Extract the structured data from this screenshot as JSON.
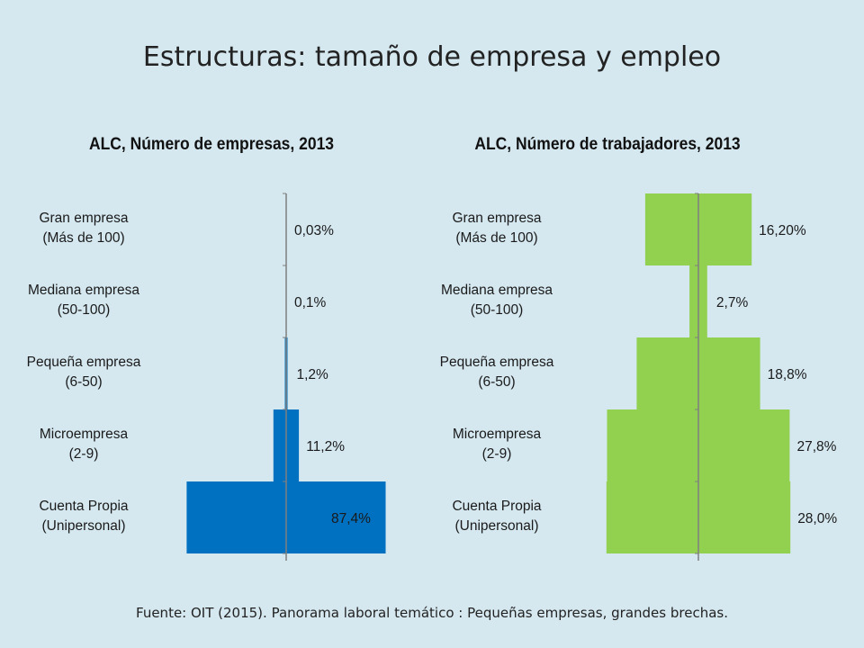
{
  "title": "Estructuras: tamaño de empresa y empleo",
  "source": "Fuente: OIT (2015). Panorama laboral temático : Pequeñas empresas, grandes brechas.",
  "colors": {
    "left": "#0070c0",
    "right": "#92d050",
    "background": "#d5e8f0"
  },
  "chart_data": [
    {
      "type": "bar",
      "title": "ALC, Número de empresas, 2013",
      "categories": [
        [
          "Gran empresa",
          "(Más de 100)"
        ],
        [
          "Mediana empresa",
          "(50-100)"
        ],
        [
          "Pequeña empresa",
          "(6-50)"
        ],
        [
          "Microempresa",
          "(2-9)"
        ],
        [
          "Cuenta Propia",
          "(Unipersonal)"
        ]
      ],
      "values": [
        0.03,
        0.1,
        1.2,
        11.2,
        87.4
      ],
      "labels": [
        "0,03%",
        "0,1%",
        "1,2%",
        "11,2%",
        "87,4%"
      ]
    },
    {
      "type": "bar",
      "title": "ALC, Número de trabajadores, 2013",
      "categories": [
        [
          "Gran empresa",
          "(Más de 100)"
        ],
        [
          "Mediana empresa",
          "(50-100)"
        ],
        [
          "Pequeña empresa",
          "(6-50)"
        ],
        [
          "Microempresa",
          "(2-9)"
        ],
        [
          "Cuenta Propia",
          "(Unipersonal)"
        ]
      ],
      "values": [
        16.2,
        2.7,
        18.8,
        27.8,
        28.0
      ],
      "labels": [
        "16,20%",
        "2,7%",
        "18,8%",
        "27,8%",
        "28,0%"
      ]
    }
  ]
}
